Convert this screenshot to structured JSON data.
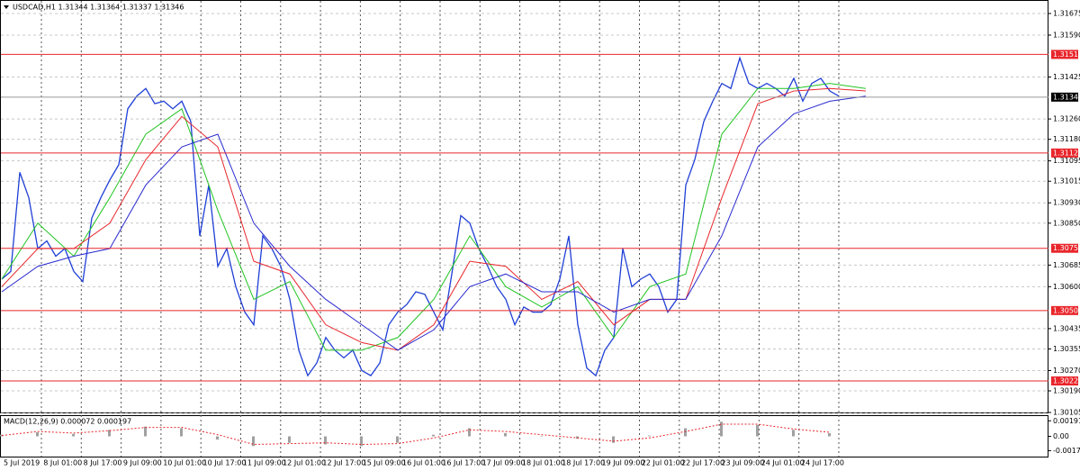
{
  "chart_data": [
    {
      "type": "price-line",
      "title": "USDCAD,H1  1.31344 1.31364 1.31337 1.31346",
      "ylim": [
        1.30105,
        1.31675
      ],
      "yticks": [
        1.31675,
        {
          "value": 1.3159,
          "label": "1.31590"
        },
        1.31425,
        {
          "value": 1.3126,
          "label": "1.31260"
        },
        {
          "value": 1.3118,
          "label": "1.31180"
        },
        1.31095,
        1.31015,
        {
          "value": 1.3093,
          "label": "1.30930"
        },
        {
          "value": 1.3085,
          "label": "1.30850"
        },
        1.30685,
        {
          "value": 1.306,
          "label": "1.30600"
        },
        1.30435,
        1.30355,
        {
          "value": 1.3027,
          "label": "1.30270"
        },
        {
          "value": 1.3019,
          "label": "1.30190"
        },
        1.30105
      ],
      "xticks": [
        "5 Jul 2019",
        "8 Jul 01:00",
        "8 Jul 17:00",
        "9 Jul 09:00",
        "10 Jul 01:00",
        "10 Jul 17:00",
        "11 Jul 09:00",
        "12 Jul 01:00",
        "12 Jul 17:00",
        "15 Jul 09:00",
        "16 Jul 01:00",
        "16 Jul 17:00",
        "17 Jul 09:00",
        "18 Jul 01:00",
        "18 Jul 17:00",
        "19 Jul 09:00",
        "22 Jul 01:00",
        "22 Jul 17:00",
        "23 Jul 09:00",
        "24 Jul 01:00",
        "24 Jul 17:00"
      ],
      "hlines": [
        1.31514,
        1.31126,
        1.30751,
        1.30506,
        1.30229
      ],
      "hline_color": "#e8262b",
      "current_price": 1.31346,
      "price": {
        "color": "#1f3fd6",
        "values": [
          1.3063,
          1.3066,
          1.3105,
          1.3095,
          1.3075,
          1.3078,
          1.3072,
          1.3075,
          1.3066,
          1.3062,
          1.3087,
          1.3095,
          1.3102,
          1.3108,
          1.313,
          1.3135,
          1.3138,
          1.3132,
          1.3133,
          1.313,
          1.3133,
          1.3125,
          1.308,
          1.31,
          1.3068,
          1.3075,
          1.306,
          1.305,
          1.3045,
          1.308,
          1.3075,
          1.3068,
          1.3055,
          1.3035,
          1.3025,
          1.303,
          1.304,
          1.3035,
          1.3032,
          1.3035,
          1.3027,
          1.3025,
          1.303,
          1.3045,
          1.305,
          1.3053,
          1.3058,
          1.3057,
          1.305,
          1.3043,
          1.3065,
          1.3088,
          1.3085,
          1.3075,
          1.3068,
          1.306,
          1.3055,
          1.3045,
          1.3052,
          1.305,
          1.305,
          1.3053,
          1.3063,
          1.308,
          1.3045,
          1.3028,
          1.3025,
          1.3035,
          1.304,
          1.3075,
          1.306,
          1.3063,
          1.3065,
          1.306,
          1.305,
          1.3055,
          1.31,
          1.311,
          1.3125,
          1.3133,
          1.314,
          1.3138,
          1.315,
          1.314,
          1.3138,
          1.314,
          1.3138,
          1.3135,
          1.3142,
          1.3133,
          1.314,
          1.3142,
          1.3137,
          1.3135
        ]
      },
      "series": [
        {
          "color": "#22c422",
          "values": [
            1.3063,
            1.3085,
            1.3072,
            1.3095,
            1.312,
            1.313,
            1.309,
            1.3055,
            1.3062,
            1.3035,
            1.3035,
            1.304,
            1.3055,
            1.308,
            1.306,
            1.3052,
            1.306,
            1.304,
            1.306,
            1.3065,
            1.312,
            1.3138,
            1.3138,
            1.314,
            1.3138
          ]
        },
        {
          "color": "#e8262b",
          "values": [
            1.306,
            1.3075,
            1.3075,
            1.3085,
            1.311,
            1.3127,
            1.3115,
            1.307,
            1.3065,
            1.3045,
            1.3038,
            1.3035,
            1.3045,
            1.307,
            1.3068,
            1.3055,
            1.3062,
            1.3045,
            1.3055,
            1.3055,
            1.3095,
            1.3132,
            1.3137,
            1.3138,
            1.3137
          ]
        },
        {
          "color": "#2a2ad0",
          "values": [
            1.3058,
            1.3068,
            1.3072,
            1.3075,
            1.31,
            1.3115,
            1.312,
            1.3085,
            1.3068,
            1.3055,
            1.3045,
            1.3035,
            1.3043,
            1.306,
            1.3065,
            1.3058,
            1.3058,
            1.305,
            1.3055,
            1.3055,
            1.308,
            1.3115,
            1.3128,
            1.3133,
            1.3135
          ]
        }
      ]
    },
    {
      "type": "macd",
      "title": "MACD(12,26,9) 0.000072 0.000197",
      "ylim": [
        -0.0025,
        0.0025
      ],
      "yticks": [
        0.001916,
        {
          "value": 0,
          "label": "0.00"
        },
        -0.001768
      ],
      "histogram": {
        "color": "#a0a0a0",
        "values": [
          0.0002,
          0.0005,
          0.0003,
          0.0008,
          0.0012,
          0.001,
          -0.0004,
          -0.0012,
          -0.0008,
          -0.001,
          -0.0012,
          -0.0008,
          0.0002,
          0.001,
          0.0004,
          0,
          -0.0003,
          -0.0008,
          0.0001,
          0.001,
          0.0018,
          0.0014,
          0.0008,
          0.0004
        ]
      },
      "signal": {
        "color": "#e8262b",
        "values": [
          0.0001,
          0.0006,
          0.0004,
          0.0007,
          0.0011,
          0.0011,
          0.0002,
          -0.001,
          -0.0009,
          -0.0008,
          -0.001,
          -0.0009,
          -0.0002,
          0.0008,
          0.0006,
          0.0002,
          -0.0002,
          -0.0006,
          -0.0002,
          0.0006,
          0.0015,
          0.0015,
          0.0009,
          0.0005
        ]
      }
    }
  ]
}
